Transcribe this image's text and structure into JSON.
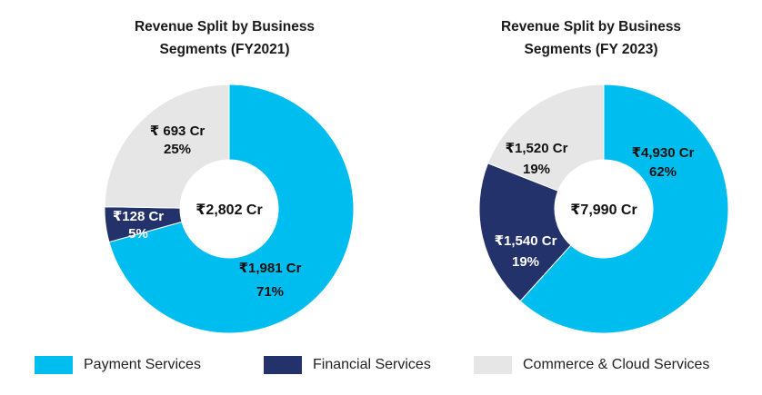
{
  "colors": {
    "payment": "#00BDEF",
    "financial": "#23326A",
    "commerce": "#E6E6E6"
  },
  "chart_data": [
    {
      "type": "pie",
      "variant": "donut",
      "title": "Revenue Split by Business Segments (FY2021)",
      "title_lines": [
        "Revenue Split by Business",
        "Segments (FY2021)"
      ],
      "center_label": "₹2,802 Cr",
      "slices": [
        {
          "series": "Payment Services",
          "value": 1981,
          "percent": 71,
          "value_label": "₹1,981 Cr",
          "percent_label": "71%",
          "color_key": "payment"
        },
        {
          "series": "Financial Services",
          "value": 128,
          "percent": 5,
          "value_label": "₹128 Cr",
          "percent_label": "5%",
          "color_key": "financial"
        },
        {
          "series": "Commerce & Cloud Services",
          "value": 693,
          "percent": 25,
          "value_label": "₹ 693 Cr",
          "percent_label": "25%",
          "color_key": "commerce"
        }
      ]
    },
    {
      "type": "pie",
      "variant": "donut",
      "title": "Revenue Split by Business Segments (FY 2023)",
      "title_lines": [
        "Revenue Split by Business",
        "Segments (FY 2023)"
      ],
      "center_label": "₹7,990 Cr",
      "slices": [
        {
          "series": "Payment Services",
          "value": 4930,
          "percent": 62,
          "value_label": "₹4,930 Cr",
          "percent_label": "62%",
          "color_key": "payment"
        },
        {
          "series": "Financial Services",
          "value": 1540,
          "percent": 19,
          "value_label": "₹1,540 Cr",
          "percent_label": "19%",
          "color_key": "financial"
        },
        {
          "series": "Commerce & Cloud Services",
          "value": 1520,
          "percent": 19,
          "value_label": "₹1,520 Cr",
          "percent_label": "19%",
          "color_key": "commerce"
        }
      ]
    }
  ],
  "legend": [
    {
      "label": "Payment Services",
      "color_key": "payment"
    },
    {
      "label": "Financial Services",
      "color_key": "financial"
    },
    {
      "label": "Commerce & Cloud Services",
      "color_key": "commerce"
    }
  ]
}
